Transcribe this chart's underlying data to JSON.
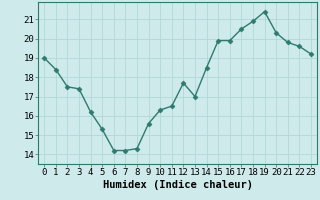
{
  "x": [
    0,
    1,
    2,
    3,
    4,
    5,
    6,
    7,
    8,
    9,
    10,
    11,
    12,
    13,
    14,
    15,
    16,
    17,
    18,
    19,
    20,
    21,
    22,
    23
  ],
  "y": [
    19.0,
    18.4,
    17.5,
    17.4,
    16.2,
    15.3,
    14.2,
    14.2,
    14.3,
    15.6,
    16.3,
    16.5,
    17.7,
    17.0,
    18.5,
    19.9,
    19.9,
    20.5,
    20.9,
    21.4,
    20.3,
    19.8,
    19.6,
    19.2
  ],
  "line_color": "#2e7b6e",
  "marker": "D",
  "marker_size": 2.5,
  "line_width": 1.0,
  "bg_color": "#ceeaea",
  "grid_color": "#b0d8d8",
  "xlabel": "Humidex (Indice chaleur)",
  "xlabel_fontsize": 7.5,
  "ylim": [
    13.5,
    21.9
  ],
  "xlim": [
    -0.5,
    23.5
  ],
  "yticks": [
    14,
    15,
    16,
    17,
    18,
    19,
    20,
    21
  ],
  "xticks": [
    0,
    1,
    2,
    3,
    4,
    5,
    6,
    7,
    8,
    9,
    10,
    11,
    12,
    13,
    14,
    15,
    16,
    17,
    18,
    19,
    20,
    21,
    22,
    23
  ],
  "tick_fontsize": 6.5,
  "spine_color": "#2e7b6e"
}
